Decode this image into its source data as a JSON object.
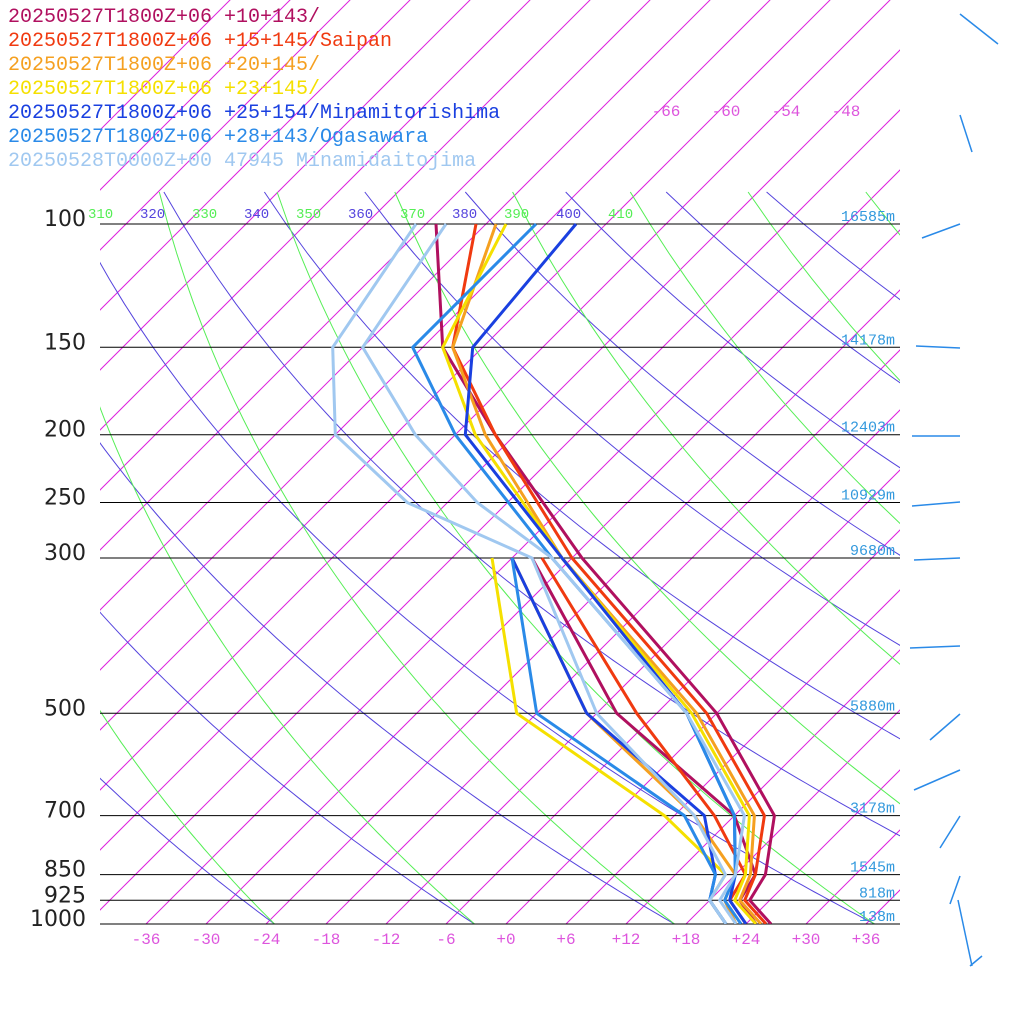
{
  "chart_data": {
    "type": "line",
    "chart_kind": "skew-T log-P sounding",
    "legend_position": "top-left",
    "series": [
      {
        "name": "20250527T1800Z+06 +10+143/",
        "color": "#b0105f",
        "temperature": [
          [
            1000,
            26.5
          ],
          [
            925,
            22
          ],
          [
            850,
            21
          ],
          [
            700,
            16
          ],
          [
            500,
            0
          ],
          [
            300,
            -29
          ],
          [
            200,
            -50
          ],
          [
            150,
            -64
          ],
          [
            100,
            -77
          ]
        ],
        "dewpoint": [
          [
            1000,
            25
          ],
          [
            925,
            21
          ],
          [
            850,
            20
          ],
          [
            700,
            12
          ],
          [
            500,
            -10
          ],
          [
            300,
            -34
          ]
        ]
      },
      {
        "name": "20250527T1800Z+06 +15+145/Saipan",
        "color": "#f03a10",
        "temperature": [
          [
            1000,
            26
          ],
          [
            925,
            21.5
          ],
          [
            850,
            20
          ],
          [
            700,
            15
          ],
          [
            500,
            -1
          ],
          [
            300,
            -30
          ],
          [
            200,
            -50
          ],
          [
            150,
            -63
          ],
          [
            100,
            -73
          ]
        ],
        "dewpoint": [
          [
            1000,
            24
          ],
          [
            925,
            20
          ],
          [
            850,
            19
          ],
          [
            700,
            10
          ],
          [
            500,
            -8
          ],
          [
            300,
            -33
          ]
        ]
      },
      {
        "name": "20250527T1800Z+06 +20+145/",
        "color": "#f5a020",
        "temperature": [
          [
            1000,
            25.5
          ],
          [
            925,
            21
          ],
          [
            850,
            19.5
          ],
          [
            700,
            14
          ],
          [
            500,
            -2
          ],
          [
            300,
            -31
          ],
          [
            200,
            -51
          ],
          [
            150,
            -63
          ],
          [
            100,
            -71
          ]
        ],
        "dewpoint": [
          [
            1000,
            23
          ],
          [
            925,
            19.5
          ],
          [
            850,
            18
          ],
          [
            700,
            8
          ],
          [
            500,
            -13
          ],
          [
            300,
            -36
          ]
        ]
      },
      {
        "name": "20250527T1800Z+06 +23+145/",
        "color": "#f5e000",
        "temperature": [
          [
            1000,
            25
          ],
          [
            925,
            20.5
          ],
          [
            850,
            19
          ],
          [
            700,
            13.5
          ],
          [
            500,
            -2.5
          ],
          [
            300,
            -31
          ],
          [
            200,
            -52
          ],
          [
            150,
            -64
          ],
          [
            100,
            -70
          ]
        ],
        "dewpoint": [
          [
            1000,
            22
          ],
          [
            925,
            18
          ],
          [
            850,
            17
          ],
          [
            700,
            5
          ],
          [
            500,
            -20
          ],
          [
            300,
            -38
          ]
        ]
      },
      {
        "name": "20250527T1800Z+06 +25+154/Minamitorishima",
        "color": "#1a40e0",
        "temperature": [
          [
            1000,
            24
          ],
          [
            925,
            20
          ],
          [
            850,
            18
          ],
          [
            700,
            12
          ],
          [
            500,
            -3
          ],
          [
            300,
            -31
          ],
          [
            200,
            -53
          ],
          [
            150,
            -61
          ],
          [
            100,
            -63
          ]
        ],
        "dewpoint": [
          [
            1000,
            22
          ],
          [
            925,
            18
          ],
          [
            850,
            16
          ],
          [
            700,
            9
          ],
          [
            500,
            -13
          ],
          [
            300,
            -36
          ]
        ]
      },
      {
        "name": "20250527T1800Z+06 +28+143/Ogasawara",
        "color": "#2a8ae8",
        "temperature": [
          [
            1000,
            23.5
          ],
          [
            925,
            19.5
          ],
          [
            850,
            18
          ],
          [
            700,
            12
          ],
          [
            500,
            -3
          ],
          [
            300,
            -32
          ],
          [
            200,
            -54
          ],
          [
            150,
            -67
          ],
          [
            100,
            -67
          ]
        ],
        "dewpoint": [
          [
            1000,
            22
          ],
          [
            925,
            18
          ],
          [
            850,
            16
          ],
          [
            700,
            7
          ],
          [
            500,
            -18
          ],
          [
            300,
            -36
          ]
        ]
      },
      {
        "name": "20250528T0000Z+00 47945 Minamidaitojima",
        "color": "#a0c8f0",
        "temperature": [
          [
            1000,
            23
          ],
          [
            925,
            19
          ],
          [
            850,
            18
          ],
          [
            700,
            13
          ],
          [
            500,
            -3
          ],
          [
            300,
            -32
          ],
          [
            250,
            -45
          ],
          [
            200,
            -58
          ],
          [
            150,
            -72
          ],
          [
            100,
            -76
          ]
        ],
        "dewpoint": [
          [
            1000,
            22
          ],
          [
            925,
            18
          ],
          [
            850,
            17
          ],
          [
            700,
            8
          ],
          [
            500,
            -12
          ],
          [
            300,
            -34
          ],
          [
            250,
            -52
          ],
          [
            200,
            -66
          ],
          [
            150,
            -75
          ],
          [
            100,
            -79
          ]
        ]
      }
    ],
    "xlabel": "",
    "ylabel": "",
    "x_ticks": [
      "-36",
      "-30",
      "-24",
      "-18",
      "-12",
      "-6",
      "+0",
      "+6",
      "+12",
      "+18",
      "+24",
      "+30",
      "+36"
    ],
    "pressure_levels": [
      {
        "label": "100",
        "p": 100,
        "height": "16585m"
      },
      {
        "label": "150",
        "p": 150,
        "height": "14178m"
      },
      {
        "label": "200",
        "p": 200,
        "height": "12403m"
      },
      {
        "label": "250",
        "p": 250,
        "height": "10929m"
      },
      {
        "label": "300",
        "p": 300,
        "height": "9680m"
      },
      {
        "label": "500",
        "p": 500,
        "height": "5880m"
      },
      {
        "label": "700",
        "p": 700,
        "height": "3178m"
      },
      {
        "label": "850",
        "p": 850,
        "height": "1545m"
      },
      {
        "label": "925",
        "p": 925,
        "height": "818m"
      },
      {
        "label": "1000",
        "p": 1000,
        "height": "138m"
      }
    ],
    "upper_temp_labels": [
      "-66",
      "-60",
      "-54",
      "-48"
    ],
    "theta_labels": [
      {
        "text": "310",
        "color": "#55ee55"
      },
      {
        "text": "320",
        "color": "#5544dd"
      },
      {
        "text": "330",
        "color": "#55ee55"
      },
      {
        "text": "340",
        "color": "#5544dd"
      },
      {
        "text": "350",
        "color": "#55ee55"
      },
      {
        "text": "360",
        "color": "#5544dd"
      },
      {
        "text": "370",
        "color": "#55ee55"
      },
      {
        "text": "380",
        "color": "#5544dd"
      },
      {
        "text": "390",
        "color": "#55ee55"
      },
      {
        "text": "400",
        "color": "#5544dd"
      },
      {
        "text": "410",
        "color": "#55ee55"
      }
    ],
    "wind_barb_color": "#2a8ae8",
    "isotherm_color": "#dd22dd",
    "isobar_color": "#000000",
    "label_colors": {
      "temperature": "#dd55dd",
      "height": "#3399dd"
    }
  }
}
